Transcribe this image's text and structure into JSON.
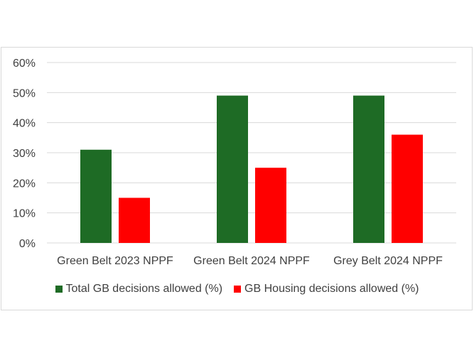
{
  "chart_data": {
    "type": "bar",
    "categories": [
      "Green Belt 2023 NPPF",
      "Green Belt 2024 NPPF",
      "Grey Belt 2024 NPPF"
    ],
    "series": [
      {
        "name": "Total GB decisions allowed (%)",
        "values": [
          31,
          49,
          49
        ],
        "color": "#1e6b25"
      },
      {
        "name": "GB Housing decisions allowed (%)",
        "values": [
          15,
          25,
          36
        ],
        "color": "#ff0000"
      }
    ],
    "ylim": [
      0,
      60
    ],
    "yticks": [
      "0%",
      "10%",
      "20%",
      "30%",
      "40%",
      "50%",
      "60%"
    ],
    "grid": true,
    "legend_position": "bottom"
  }
}
